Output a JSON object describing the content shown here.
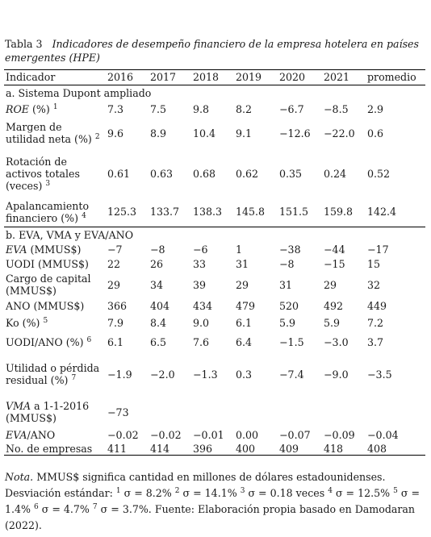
{
  "caption": {
    "label": "Tabla 3",
    "title": "Indicadores de desempeño financiero de la empresa hotelera en países emergentes (HPE)"
  },
  "columns": [
    "Indicador",
    "2016",
    "2017",
    "2018",
    "2019",
    "2020",
    "2021",
    "promedio"
  ],
  "section_a": "a.   Sistema Dupont ampliado",
  "section_b": "b.   EVA, VMA y EVA/ANO",
  "rows_a": [
    {
      "label": "ROE (%)",
      "italic_part": "ROE",
      "rest": " (%)",
      "sup": "1",
      "values": [
        "7.3",
        "7.5",
        "9.8",
        "8.2",
        "−6.7",
        "−8.5",
        "2.9"
      ]
    },
    {
      "label": "Margen de utilidad neta (%)",
      "sup": "2",
      "values": [
        "9.6",
        "8.9",
        "10.4",
        "9.1",
        "−12.6",
        "−22.0",
        "0.6"
      ]
    },
    {
      "label": "Rotación de activos totales (veces)",
      "sup": "3",
      "values": [
        "0.61",
        "0.63",
        "0.68",
        "0.62",
        "0.35",
        "0.24",
        "0.52"
      ]
    },
    {
      "label": "Apalancamiento financiero (%)",
      "sup": "4",
      "values": [
        "125.3",
        "133.7",
        "138.3",
        "145.8",
        "151.5",
        "159.8",
        "142.4"
      ]
    }
  ],
  "rows_b": [
    {
      "label": "EVA (MMUS$)",
      "italic_part": "EVA",
      "rest": " (MMUS$)",
      "sup": "",
      "values": [
        "−7",
        "−8",
        "−6",
        "1",
        "−38",
        "−44",
        "−17"
      ]
    },
    {
      "label": "UODI (MMUS$)",
      "sup": "",
      "values": [
        "22",
        "26",
        "33",
        "31",
        "−8",
        "−15",
        "15"
      ]
    },
    {
      "label": "Cargo de capital (MMUS$)",
      "sup": "",
      "values": [
        "29",
        "34",
        "39",
        "29",
        "31",
        "29",
        "32"
      ]
    },
    {
      "label": "ANO (MMUS$)",
      "sup": "",
      "values": [
        "366",
        "404",
        "434",
        "479",
        "520",
        "492",
        "449"
      ]
    },
    {
      "label": "Ko (%)",
      "sup": "5",
      "values": [
        "7.9",
        "8.4",
        "9.0",
        "6.1",
        "5.9",
        "5.9",
        "7.2"
      ]
    },
    {
      "label": "UODI/ANO (%)",
      "sup": "6",
      "values": [
        "6.1",
        "6.5",
        "7.6",
        "6.4",
        "−1.5",
        "−3.0",
        "3.7"
      ]
    },
    {
      "label": "Utilidad o pérdida residual (%)",
      "sup": "7",
      "values": [
        "−1.9",
        "−2.0",
        "−1.3",
        "0.3",
        "−7.4",
        "−9.0",
        "−3.5"
      ]
    },
    {
      "label": "VMA a 1-1-2016 (MMUS$)",
      "italic_part": "VMA",
      "rest": " a 1-1-2016 (MMUS$)",
      "sup": "",
      "values": [
        "−73",
        "",
        "",
        "",
        "",
        "",
        ""
      ]
    },
    {
      "label": "EVA/ANO",
      "italic_part": "EVA",
      "rest": "/ANO",
      "sup": "",
      "values": [
        "−0.02",
        "−0.02",
        "−0.01",
        "0.00",
        "−0.07",
        "−0.09",
        "−0.04"
      ]
    },
    {
      "label": "No. de empresas",
      "sup": "",
      "values": [
        "411",
        "414",
        "396",
        "400",
        "409",
        "418",
        "408"
      ]
    }
  ],
  "note": {
    "label": "Nota.",
    "line1": " MMUS$ significa cantidad en millones de dólares estadounidenses.",
    "desv_label": "Desviación estándar: ",
    "sigmas": [
      {
        "sup": "1",
        "text": "σ = 8.2%"
      },
      {
        "sup": "2",
        "text": "σ = 14.1%"
      },
      {
        "sup": "3",
        "text": "σ = 0.18 veces"
      },
      {
        "sup": "4",
        "text": "σ = 12.5%"
      },
      {
        "sup": "5",
        "text": "σ = 1.4%"
      },
      {
        "sup": "6",
        "text": "σ = 4.7%"
      },
      {
        "sup": "7",
        "text": "σ = 3.7%."
      }
    ],
    "source": " Fuente: Elaboración propia basado en Damodaran (2022)."
  }
}
